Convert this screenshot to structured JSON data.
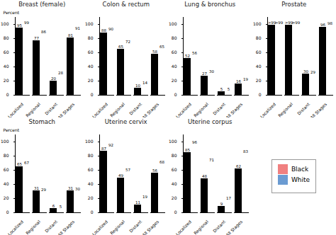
{
  "chart_data": [
    {
      "type": "bar",
      "title": "Breast (female)",
      "categories": [
        "Localized",
        "Regional",
        "Distant",
        "All Stages"
      ],
      "series": [
        {
          "name": "Black",
          "color": "#f08080",
          "values": [
            95,
            77,
            20,
            81
          ]
        },
        {
          "name": "White",
          "color": "#6b9bd2",
          "values": [
            99,
            86,
            28,
            91
          ]
        }
      ],
      "ylabel": "Percent",
      "ylim": [
        0,
        110
      ],
      "yticks": [
        0,
        20,
        40,
        60,
        80,
        100
      ],
      "data_labels": true
    },
    {
      "type": "bar",
      "title": "Colon & rectum",
      "categories": [
        "Localized",
        "Regional",
        "Distant",
        "All Stages"
      ],
      "series": [
        {
          "name": "Black",
          "color": "#f08080",
          "values": [
            88,
            65,
            10,
            58
          ]
        },
        {
          "name": "White",
          "color": "#6b9bd2",
          "values": [
            90,
            72,
            14,
            65
          ]
        }
      ],
      "ylim": [
        0,
        110
      ],
      "yticks": [
        0,
        20,
        40,
        60,
        80,
        100
      ],
      "data_labels": true
    },
    {
      "type": "bar",
      "title": "Lung & bronchus",
      "categories": [
        "Localized",
        "Regional",
        "Distant",
        "All Stages"
      ],
      "series": [
        {
          "name": "Black",
          "color": "#f08080",
          "values": [
            52,
            27,
            5,
            16
          ]
        },
        {
          "name": "White",
          "color": "#6b9bd2",
          "values": [
            56,
            30,
            5,
            19
          ]
        }
      ],
      "ylim": [
        0,
        110
      ],
      "yticks": [
        0,
        20,
        40,
        60,
        80,
        100
      ],
      "data_labels": true
    },
    {
      "type": "bar",
      "title": "Prostate",
      "categories": [
        "Localized",
        "Regional",
        "Distant",
        "All Stages"
      ],
      "series": [
        {
          "name": "Black",
          "color": "#f08080",
          "values": [
            99,
            99,
            30,
            96
          ],
          "value_labels": [
            ">99",
            ">99",
            "30",
            "96"
          ]
        },
        {
          "name": "White",
          "color": "#6b9bd2",
          "values": [
            99,
            99,
            29,
            98
          ],
          "value_labels": [
            ">99",
            ">99",
            "29",
            "98"
          ]
        }
      ],
      "ylim": [
        0,
        110
      ],
      "yticks": [
        0,
        20,
        40,
        60,
        80,
        100
      ],
      "data_labels": true
    },
    {
      "type": "bar",
      "title": "Stomach",
      "categories": [
        "Localized",
        "Regional",
        "Distant",
        "All Stages"
      ],
      "series": [
        {
          "name": "Black",
          "color": "#f08080",
          "values": [
            65,
            31,
            6,
            31
          ]
        },
        {
          "name": "White",
          "color": "#6b9bd2",
          "values": [
            67,
            29,
            5,
            30
          ]
        }
      ],
      "ylabel": "Percent",
      "ylim": [
        0,
        110
      ],
      "yticks": [
        0,
        20,
        40,
        60,
        80,
        100
      ],
      "data_labels": true
    },
    {
      "type": "bar",
      "title": "Uterine cervix",
      "categories": [
        "Localized",
        "Regional",
        "Distant",
        "All Stages"
      ],
      "series": [
        {
          "name": "Black",
          "color": "#f08080",
          "values": [
            87,
            49,
            11,
            56
          ]
        },
        {
          "name": "White",
          "color": "#6b9bd2",
          "values": [
            92,
            57,
            19,
            68
          ]
        }
      ],
      "ylim": [
        0,
        110
      ],
      "yticks": [
        0,
        20,
        40,
        60,
        80,
        100
      ],
      "data_labels": true
    },
    {
      "type": "bar",
      "title": "Uterine corpus",
      "categories": [
        "Localized",
        "Regional",
        "Distant",
        "All Stages"
      ],
      "series": [
        {
          "name": "Black",
          "color": "#f08080",
          "values": [
            85,
            48,
            9,
            62
          ]
        },
        {
          "name": "White",
          "color": "#6b9bd2",
          "values": [
            96,
            71,
            17,
            83
          ]
        }
      ],
      "ylim": [
        0,
        110
      ],
      "yticks": [
        0,
        20,
        40,
        60,
        80,
        100
      ],
      "data_labels": true,
      "legend": "right"
    }
  ]
}
